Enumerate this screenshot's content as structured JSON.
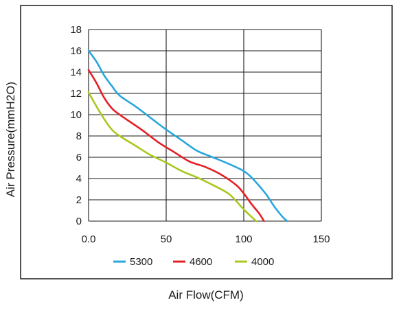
{
  "chart_data": {
    "type": "line",
    "title": "",
    "xlabel": "Air Flow(CFM)",
    "ylabel": "Air Pressure(mmH2O)",
    "xlim": [
      0,
      150
    ],
    "ylim": [
      0,
      18
    ],
    "xticks": [
      0,
      50,
      100,
      150
    ],
    "xtick_labels": [
      "0.0",
      "50",
      "100",
      "150"
    ],
    "yticks": [
      0,
      2,
      4,
      6,
      8,
      10,
      12,
      14,
      16,
      18
    ],
    "ytick_labels": [
      "0",
      "2",
      "4",
      "6",
      "8",
      "10",
      "12",
      "14",
      "16",
      "18"
    ],
    "grid": true,
    "legend_position": "bottom",
    "series": [
      {
        "name": "5300",
        "color": "#29a6dc",
        "points": [
          [
            0,
            16
          ],
          [
            5,
            15
          ],
          [
            10,
            13.7
          ],
          [
            15,
            12.7
          ],
          [
            20,
            11.8
          ],
          [
            30,
            10.8
          ],
          [
            40,
            9.7
          ],
          [
            50,
            8.6
          ],
          [
            60,
            7.6
          ],
          [
            70,
            6.6
          ],
          [
            80,
            6
          ],
          [
            90,
            5.4
          ],
          [
            100,
            4.7
          ],
          [
            105,
            4.1
          ],
          [
            110,
            3.3
          ],
          [
            115,
            2.4
          ],
          [
            120,
            1.3
          ],
          [
            125,
            0.4
          ],
          [
            128,
            0
          ]
        ]
      },
      {
        "name": "4600",
        "color": "#e32026",
        "points": [
          [
            0,
            14.2
          ],
          [
            5,
            13
          ],
          [
            10,
            11.6
          ],
          [
            15,
            10.6
          ],
          [
            20,
            10
          ],
          [
            25,
            9.5
          ],
          [
            35,
            8.5
          ],
          [
            45,
            7.4
          ],
          [
            55,
            6.5
          ],
          [
            65,
            5.6
          ],
          [
            75,
            5.1
          ],
          [
            85,
            4.4
          ],
          [
            95,
            3.4
          ],
          [
            100,
            2.6
          ],
          [
            105,
            1.6
          ],
          [
            110,
            0.7
          ],
          [
            113,
            0
          ]
        ]
      },
      {
        "name": "4000",
        "color": "#a8c81f",
        "points": [
          [
            0,
            12.1
          ],
          [
            5,
            10.8
          ],
          [
            10,
            9.6
          ],
          [
            15,
            8.6
          ],
          [
            20,
            8
          ],
          [
            30,
            7.1
          ],
          [
            40,
            6.2
          ],
          [
            50,
            5.5
          ],
          [
            60,
            4.7
          ],
          [
            70,
            4.1
          ],
          [
            80,
            3.4
          ],
          [
            90,
            2.6
          ],
          [
            95,
            1.9
          ],
          [
            100,
            1.1
          ],
          [
            105,
            0.4
          ],
          [
            108,
            0
          ]
        ]
      }
    ]
  }
}
